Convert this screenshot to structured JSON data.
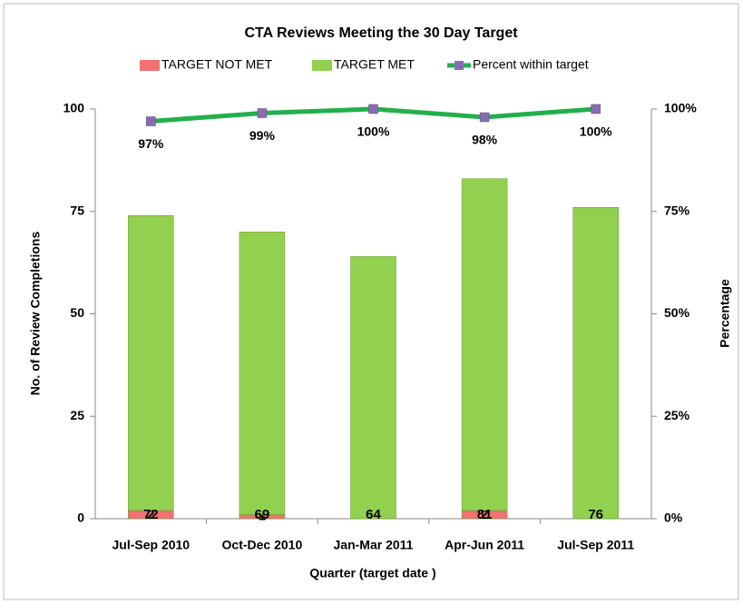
{
  "chart_data": {
    "type": "bar",
    "stacked": true,
    "title": "CTA Reviews Meeting the 30 Day Target",
    "xlabel": "Quarter (target date )",
    "ylabel": "No. of Review Completions",
    "y2label": "Percentage",
    "categories": [
      "Jul-Sep 2010",
      "Oct-Dec 2010",
      "Jan-Mar 2011",
      "Apr-Jun 2011",
      "Jul-Sep 2011"
    ],
    "series": [
      {
        "name": "TARGET NOT MET",
        "color": "#f07272",
        "values": [
          2,
          1,
          0,
          2,
          0
        ]
      },
      {
        "name": "TARGET MET",
        "color": "#92d050",
        "values": [
          72,
          69,
          64,
          81,
          76
        ]
      },
      {
        "name": "Percent within target",
        "type": "line",
        "axis": "y2",
        "color": "#22b04b",
        "marker_color": "#8a6bb3",
        "values": [
          97,
          99,
          100,
          98,
          100
        ],
        "value_labels": [
          "97%",
          "99%",
          "100%",
          "98%",
          "100%"
        ]
      }
    ],
    "ylim": [
      0,
      100
    ],
    "yticks": [
      0,
      25,
      50,
      75,
      100
    ],
    "y2lim": [
      0,
      100
    ],
    "y2ticks": [
      {
        "value": 0,
        "label": "0%"
      },
      {
        "value": 25,
        "label": "25%"
      },
      {
        "value": 50,
        "label": "50%"
      },
      {
        "value": 75,
        "label": "75%"
      },
      {
        "value": 100,
        "label": "100%"
      }
    ],
    "grid": false,
    "legend": "top"
  }
}
